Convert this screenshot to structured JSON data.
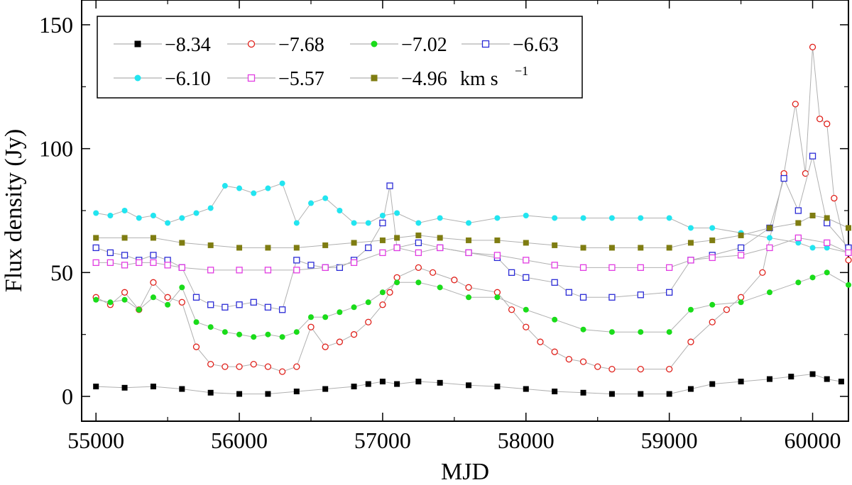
{
  "chart_data": {
    "type": "scatter",
    "title": "",
    "xlabel": "MJD",
    "ylabel": "Flux density (Jy)",
    "xlim": [
      54900,
      60250
    ],
    "ylim": [
      -10,
      160
    ],
    "xticks": [
      55000,
      56000,
      57000,
      58000,
      59000,
      60000
    ],
    "yticks": [
      0,
      50,
      100,
      150
    ],
    "legend_unit": "km s",
    "legend_unit_exp": "−1",
    "connecting_line_color": "#b0b0b0",
    "series": [
      {
        "name": "−8.34",
        "marker": "filled-square",
        "color": "#000000",
        "x": [
          55000,
          55200,
          55400,
          55600,
          55800,
          56000,
          56200,
          56400,
          56600,
          56800,
          56900,
          57000,
          57100,
          57250,
          57400,
          57600,
          57800,
          58000,
          58200,
          58400,
          58600,
          58800,
          59000,
          59150,
          59300,
          59500,
          59700,
          59850,
          60000,
          60100,
          60200
        ],
        "y": [
          4,
          3.5,
          4,
          3,
          1.5,
          1,
          1,
          2,
          3,
          4,
          5,
          6,
          5,
          6,
          5.5,
          4.5,
          4,
          3,
          2,
          1.5,
          1,
          1,
          1,
          3,
          5,
          6,
          7,
          8,
          9,
          7,
          6
        ]
      },
      {
        "name": "−7.68",
        "marker": "open-circle",
        "color": "#e0201a",
        "x": [
          55000,
          55100,
          55200,
          55300,
          55400,
          55500,
          55600,
          55700,
          55800,
          55900,
          56000,
          56100,
          56200,
          56300,
          56400,
          56500,
          56600,
          56700,
          56800,
          56900,
          57000,
          57050,
          57100,
          57250,
          57350,
          57500,
          57600,
          57800,
          57900,
          58000,
          58100,
          58200,
          58300,
          58400,
          58500,
          58600,
          58800,
          59000,
          59150,
          59300,
          59400,
          59500,
          59650,
          59800,
          59880,
          59950,
          60000,
          60050,
          60100,
          60150,
          60250
        ],
        "y": [
          40,
          37,
          42,
          35,
          46,
          40,
          38,
          20,
          13,
          12,
          12,
          13,
          12,
          10,
          12,
          28,
          20,
          22,
          25,
          30,
          37,
          42,
          48,
          52,
          50,
          47,
          44,
          42,
          35,
          28,
          22,
          18,
          15,
          14,
          12,
          11,
          11,
          11,
          22,
          30,
          35,
          40,
          50,
          90,
          118,
          90,
          141,
          112,
          110,
          80,
          55
        ]
      },
      {
        "name": "−7.02",
        "marker": "filled-circle",
        "color": "#1adc1a",
        "x": [
          55000,
          55100,
          55200,
          55300,
          55400,
          55500,
          55600,
          55700,
          55800,
          55900,
          56000,
          56100,
          56200,
          56300,
          56400,
          56500,
          56600,
          56700,
          56800,
          56900,
          57000,
          57100,
          57250,
          57400,
          57600,
          57800,
          58000,
          58200,
          58400,
          58600,
          58800,
          59000,
          59150,
          59300,
          59500,
          59700,
          59900,
          60000,
          60100,
          60250
        ],
        "y": [
          39,
          38,
          39,
          35,
          40,
          37,
          44,
          30,
          28,
          26,
          25,
          24,
          25,
          24,
          26,
          32,
          32,
          34,
          36,
          38,
          42,
          46,
          46,
          44,
          40,
          40,
          35,
          31,
          27,
          26,
          26,
          26,
          35,
          37,
          38,
          42,
          46,
          48,
          50,
          45
        ]
      },
      {
        "name": "−6.63",
        "marker": "open-square",
        "color": "#2b2bd6",
        "x": [
          55000,
          55100,
          55200,
          55300,
          55400,
          55500,
          55600,
          55700,
          55800,
          55900,
          56000,
          56100,
          56200,
          56300,
          56400,
          56500,
          56600,
          56700,
          56800,
          56900,
          57000,
          57050,
          57100,
          57250,
          57400,
          57600,
          57800,
          57900,
          58000,
          58200,
          58300,
          58400,
          58600,
          58800,
          59000,
          59150,
          59300,
          59500,
          59700,
          59800,
          59900,
          60000,
          60100,
          60250
        ],
        "y": [
          60,
          58,
          57,
          55,
          57,
          55,
          52,
          40,
          37,
          36,
          37,
          38,
          36,
          35,
          55,
          53,
          52,
          52,
          55,
          60,
          70,
          85,
          60,
          62,
          60,
          58,
          56,
          50,
          48,
          46,
          42,
          40,
          40,
          41,
          42,
          55,
          57,
          60,
          68,
          88,
          75,
          97,
          70,
          60
        ]
      },
      {
        "name": "−6.10",
        "marker": "filled-circle",
        "color": "#22e5f0",
        "x": [
          55000,
          55100,
          55200,
          55300,
          55400,
          55500,
          55600,
          55700,
          55800,
          55900,
          56000,
          56100,
          56200,
          56300,
          56400,
          56500,
          56600,
          56700,
          56800,
          56900,
          57000,
          57100,
          57250,
          57400,
          57600,
          57800,
          58000,
          58200,
          58400,
          58600,
          58800,
          59000,
          59150,
          59300,
          59500,
          59700,
          59900,
          60000,
          60100,
          60250
        ],
        "y": [
          74,
          73,
          75,
          72,
          73,
          70,
          72,
          74,
          76,
          85,
          84,
          82,
          84,
          86,
          70,
          78,
          80,
          75,
          70,
          70,
          73,
          74,
          70,
          72,
          70,
          72,
          73,
          72,
          72,
          72,
          72,
          72,
          68,
          68,
          66,
          64,
          62,
          60,
          60,
          58
        ]
      },
      {
        "name": "−5.57",
        "marker": "open-square",
        "color": "#e23ce2",
        "x": [
          55000,
          55100,
          55200,
          55300,
          55400,
          55500,
          55600,
          55800,
          56000,
          56200,
          56400,
          56600,
          56800,
          57000,
          57100,
          57250,
          57400,
          57600,
          57800,
          58000,
          58200,
          58400,
          58600,
          58800,
          59000,
          59150,
          59300,
          59500,
          59700,
          59900,
          60100,
          60250
        ],
        "y": [
          54,
          54,
          53,
          54,
          54,
          53,
          52,
          51,
          51,
          51,
          51,
          52,
          54,
          58,
          60,
          58,
          60,
          58,
          57,
          55,
          53,
          52,
          52,
          52,
          52,
          55,
          56,
          57,
          60,
          64,
          62,
          58
        ]
      },
      {
        "name": "−4.96",
        "marker": "filled-square",
        "color": "#7f7d12",
        "x": [
          55000,
          55200,
          55400,
          55600,
          55800,
          56000,
          56200,
          56400,
          56600,
          56800,
          57000,
          57100,
          57250,
          57400,
          57600,
          57800,
          58000,
          58200,
          58400,
          58600,
          58800,
          59000,
          59150,
          59300,
          59500,
          59700,
          59900,
          60000,
          60100,
          60250
        ],
        "y": [
          64,
          64,
          64,
          62,
          61,
          60,
          60,
          60,
          61,
          62,
          63,
          64,
          65,
          64,
          63,
          63,
          62,
          61,
          60,
          60,
          60,
          60,
          62,
          63,
          65,
          68,
          70,
          73,
          72,
          68
        ]
      }
    ]
  }
}
